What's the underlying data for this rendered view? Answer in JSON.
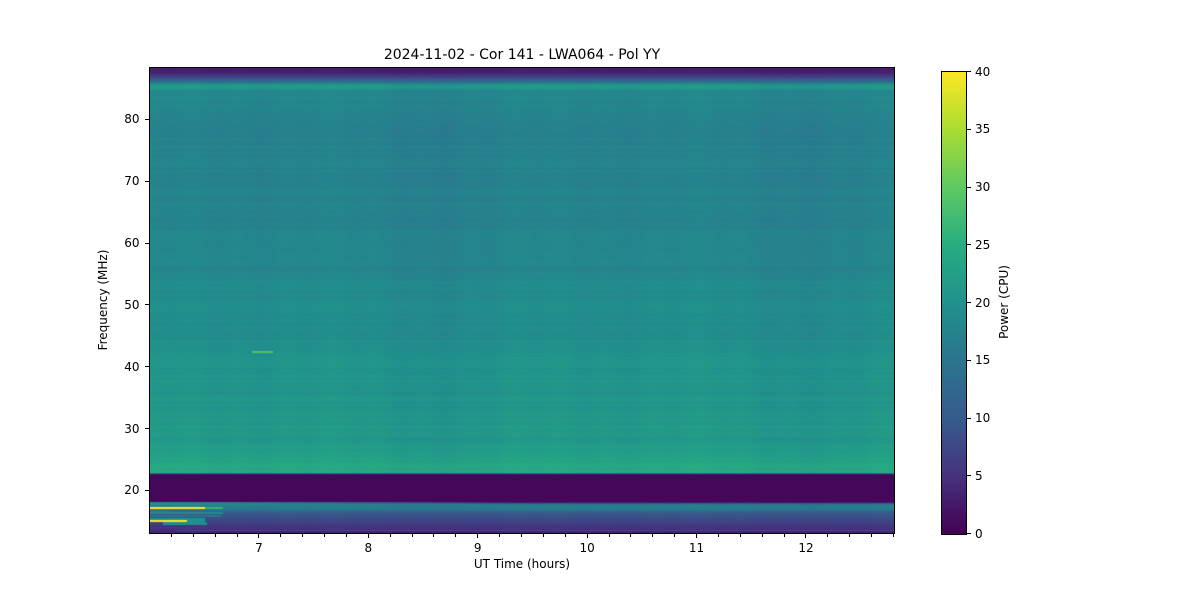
{
  "chart": {
    "title": "2024-11-02 - Cor 141 - LWA064 - Pol YY",
    "xlabel": "UT Time (hours)",
    "ylabel": "Frequency (MHz)",
    "colorbar_label": "Power (CPU)"
  },
  "chart_data": {
    "type": "heatmap",
    "title": "2024-11-02 - Cor 141 - LWA064 - Pol YY",
    "xlabel": "UT Time (hours)",
    "ylabel": "Frequency (MHz)",
    "colorbar_label": "Power (CPU)",
    "colormap": "viridis",
    "x_range": [
      6.0,
      12.8
    ],
    "y_range": [
      13.2,
      88.4
    ],
    "c_range": [
      0,
      40
    ],
    "x_ticks": [
      7,
      8,
      9,
      10,
      11,
      12
    ],
    "x_minor_step": 0.2,
    "y_ticks": [
      20,
      30,
      40,
      50,
      60,
      70,
      80
    ],
    "colorbar_ticks": [
      0,
      5,
      10,
      15,
      20,
      25,
      30,
      35,
      40
    ],
    "grid": false,
    "colormap_stops": [
      [
        0.0,
        68,
        1,
        84
      ],
      [
        0.125,
        70,
        50,
        126
      ],
      [
        0.25,
        54,
        92,
        141
      ],
      [
        0.375,
        43,
        116,
        142
      ],
      [
        0.5,
        33,
        145,
        140
      ],
      [
        0.625,
        39,
        173,
        129
      ],
      [
        0.75,
        94,
        201,
        98
      ],
      [
        0.875,
        170,
        220,
        50
      ],
      [
        1.0,
        253,
        231,
        37
      ]
    ],
    "base_profile": [
      [
        88.4,
        2.8
      ],
      [
        87.6,
        3.2
      ],
      [
        86.9,
        7.0
      ],
      [
        86.2,
        13.0
      ],
      [
        85.7,
        20.5
      ],
      [
        85.1,
        21.3
      ],
      [
        84.6,
        18.3
      ],
      [
        78.2,
        17.2
      ],
      [
        77.4,
        16.2
      ],
      [
        76.9,
        17.4
      ],
      [
        62.0,
        17.8
      ],
      [
        54.6,
        18.2
      ],
      [
        53.9,
        19.0
      ],
      [
        44.7,
        19.2
      ],
      [
        44.25,
        20.8
      ],
      [
        43.85,
        19.5
      ],
      [
        43.4,
        20.0
      ],
      [
        40.0,
        20.3
      ],
      [
        28.0,
        21.2
      ],
      [
        23.4,
        24.4
      ],
      [
        22.95,
        24.8
      ],
      [
        22.7,
        1.2
      ],
      [
        22.5,
        0.7
      ],
      [
        18.3,
        0.6
      ],
      [
        18.1,
        3.0
      ],
      [
        17.85,
        15.0
      ],
      [
        17.6,
        17.3
      ],
      [
        17.05,
        16.6
      ],
      [
        16.75,
        12.0
      ],
      [
        16.4,
        9.5
      ],
      [
        15.6,
        8.2
      ],
      [
        14.6,
        6.2
      ],
      [
        13.7,
        4.4
      ],
      [
        13.2,
        3.0
      ]
    ],
    "features": [
      {
        "name": "rfi-stripe-18MHz",
        "f": [
          17.8,
          18.2
        ],
        "t": [
          6.0,
          9.3
        ],
        "v": 19.5,
        "fade": true
      },
      {
        "name": "rfi-yellow-17.3MHz",
        "f": [
          17.15,
          17.45
        ],
        "t": [
          6.0,
          6.5
        ],
        "v": 40
      },
      {
        "name": "rfi-green-tail-17.3MHz",
        "f": [
          17.15,
          17.45
        ],
        "t": [
          6.5,
          6.67
        ],
        "v": 26
      },
      {
        "name": "rfi-teal-16.8MHz",
        "f": [
          16.6,
          17.0
        ],
        "t": [
          6.0,
          6.18
        ],
        "v": 15
      },
      {
        "name": "rfi-teal-16.4MHz",
        "f": [
          16.25,
          16.6
        ],
        "t": [
          6.0,
          6.67
        ],
        "v": 19
      },
      {
        "name": "rfi-teal-15.9MHz",
        "f": [
          15.75,
          16.1
        ],
        "t": [
          6.0,
          6.65
        ],
        "v": 15
      },
      {
        "name": "rfi-teal-15.4MHz",
        "f": [
          15.3,
          15.55
        ],
        "t": [
          6.0,
          6.5
        ],
        "v": 20
      },
      {
        "name": "rfi-yellow-15.2MHz",
        "f": [
          15.05,
          15.3
        ],
        "t": [
          6.0,
          6.34
        ],
        "v": 40
      },
      {
        "name": "rfi-teal-tail-15.2MHz",
        "f": [
          15.05,
          15.3
        ],
        "t": [
          6.34,
          6.5
        ],
        "v": 20
      },
      {
        "name": "rfi-block-14.8MHz",
        "f": [
          14.55,
          15.0
        ],
        "t": [
          6.12,
          6.52
        ],
        "v": 19
      },
      {
        "name": "burst-42.5MHz",
        "f": [
          42.35,
          42.65
        ],
        "t": [
          6.93,
          7.12
        ],
        "v": 29
      },
      {
        "name": "faint-line-13.5MHz",
        "f": [
          13.45,
          13.67
        ],
        "t": [
          6.25,
          12.8
        ],
        "v": 7.5
      }
    ]
  }
}
